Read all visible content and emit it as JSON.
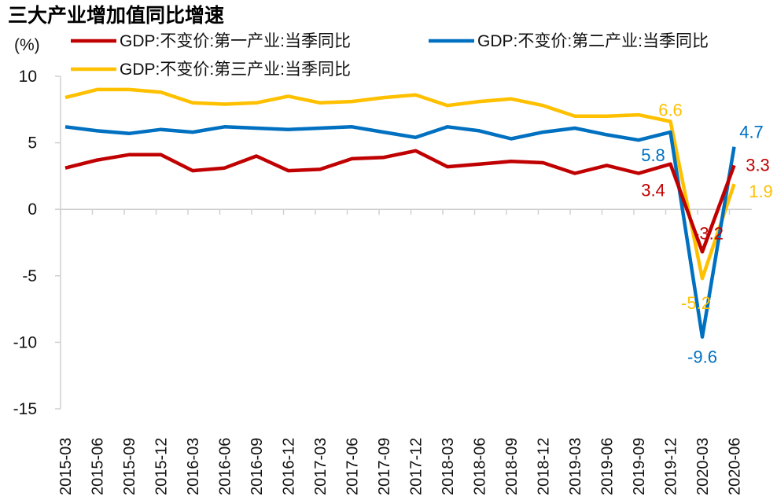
{
  "chart_data": {
    "type": "line",
    "title": "三大产业增加值同比增速",
    "ylabel": "(%)",
    "xlabel": "",
    "ylim": [
      -15,
      10
    ],
    "yticks": [
      10,
      5,
      0,
      -5,
      -10,
      -15
    ],
    "grid": false,
    "legend_position": "top",
    "categories": [
      "2015-03",
      "2015-06",
      "2015-09",
      "2015-12",
      "2016-03",
      "2016-06",
      "2016-09",
      "2016-12",
      "2017-03",
      "2017-06",
      "2017-09",
      "2017-12",
      "2018-03",
      "2018-06",
      "2018-09",
      "2018-12",
      "2019-03",
      "2019-06",
      "2019-09",
      "2019-12",
      "2020-03",
      "2020-06"
    ],
    "series": [
      {
        "name": "GDP:不变价:第一产业:当季同比",
        "color": "#C00000",
        "values": [
          3.1,
          3.7,
          4.1,
          4.1,
          2.9,
          3.1,
          4.0,
          2.9,
          3.0,
          3.8,
          3.9,
          4.4,
          3.2,
          3.4,
          3.6,
          3.5,
          2.7,
          3.3,
          2.7,
          3.4,
          -3.2,
          3.3
        ]
      },
      {
        "name": "GDP:不变价:第二产业:当季同比",
        "color": "#0070C0",
        "values": [
          6.2,
          5.9,
          5.7,
          6.0,
          5.8,
          6.2,
          6.1,
          6.0,
          6.1,
          6.2,
          5.8,
          5.4,
          6.2,
          5.9,
          5.3,
          5.8,
          6.1,
          5.6,
          5.2,
          5.8,
          -9.6,
          4.7
        ]
      },
      {
        "name": "GDP:不变价:第三产业:当季同比",
        "color": "#FFC000",
        "values": [
          8.4,
          9.0,
          9.0,
          8.8,
          8.0,
          7.9,
          8.0,
          8.5,
          8.0,
          8.1,
          8.4,
          8.6,
          7.8,
          8.1,
          8.3,
          7.8,
          7.0,
          7.0,
          7.1,
          6.6,
          -5.2,
          1.9
        ]
      }
    ],
    "annotations": [
      {
        "series": 2,
        "category": "2019-12",
        "text": "6.6"
      },
      {
        "series": 1,
        "category": "2019-12",
        "text": "5.8"
      },
      {
        "series": 0,
        "category": "2019-12",
        "text": "3.4"
      },
      {
        "series": 0,
        "category": "2020-03",
        "text": "-3.2"
      },
      {
        "series": 2,
        "category": "2020-03",
        "text": "-5.2"
      },
      {
        "series": 1,
        "category": "2020-03",
        "text": "-9.6"
      },
      {
        "series": 1,
        "category": "2020-06",
        "text": "4.7"
      },
      {
        "series": 0,
        "category": "2020-06",
        "text": "3.3"
      },
      {
        "series": 2,
        "category": "2020-06",
        "text": "1.9"
      }
    ]
  }
}
